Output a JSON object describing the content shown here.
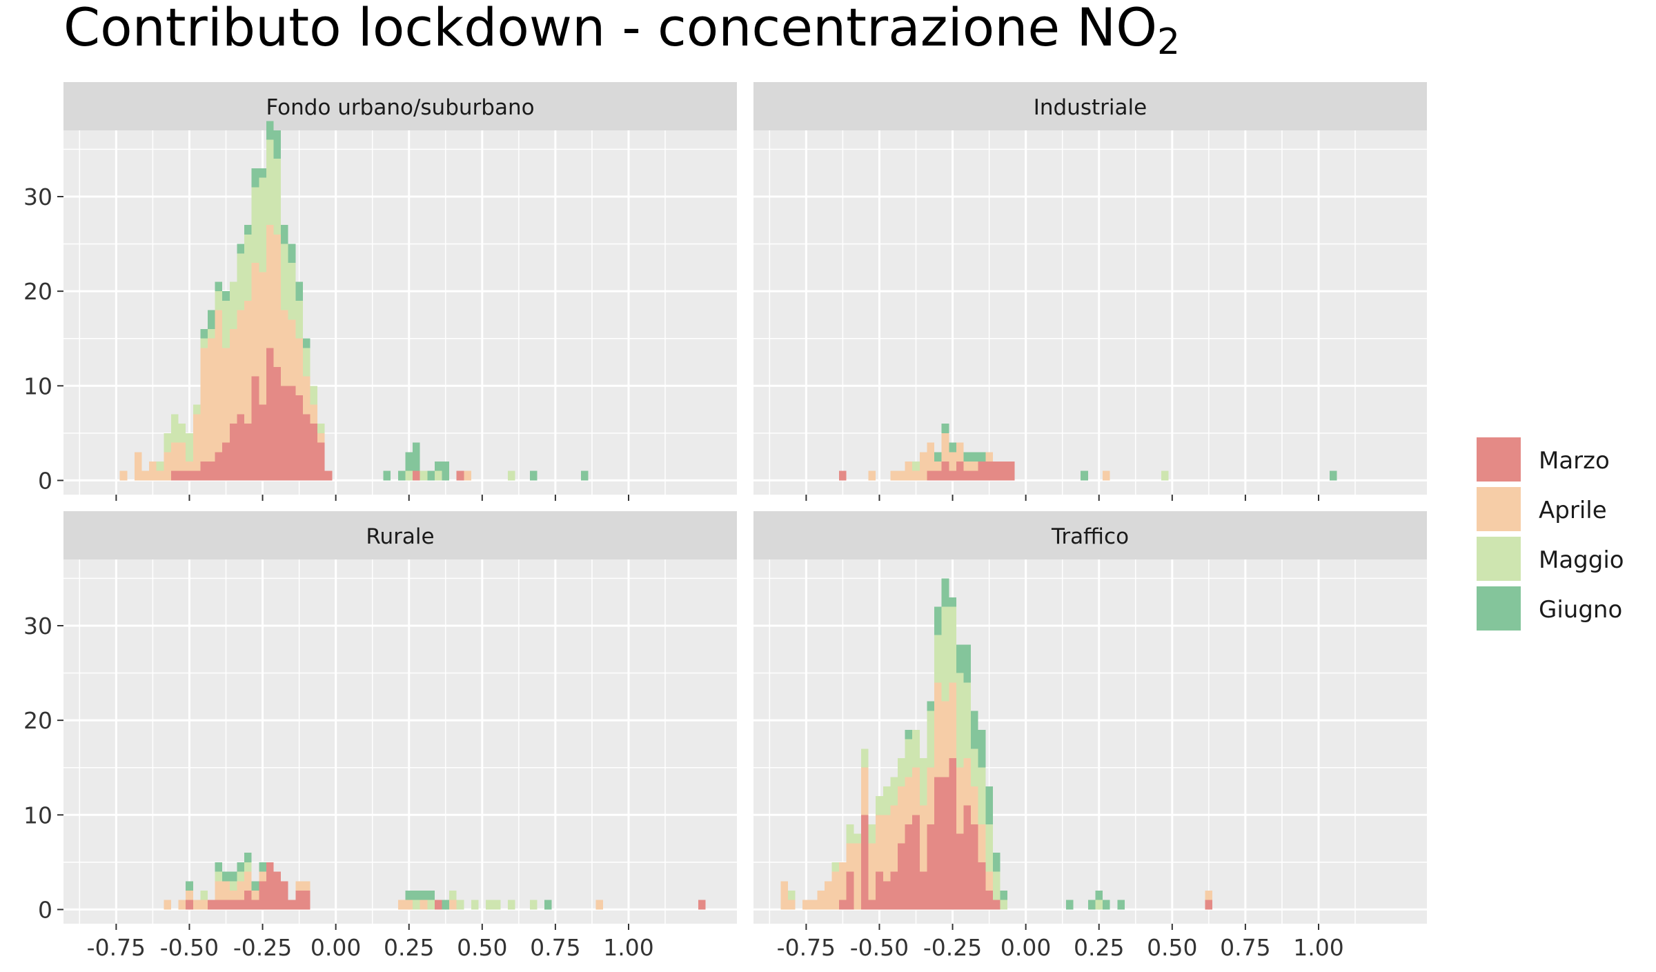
{
  "title": {
    "text": "Contributo lockdown - concentrazione NO",
    "subscript": "2"
  },
  "colors": {
    "Marzo": "#e48a86",
    "Aprile": "#f6cda7",
    "Maggio": "#cee5b0",
    "Giugno": "#84c59b",
    "panel_bg": "#ebebeb",
    "strip_bg": "#d9d9d9",
    "grid": "#ffffff"
  },
  "legend": {
    "position": "right",
    "items": [
      {
        "label": "Marzo",
        "color": "#e48a86"
      },
      {
        "label": "Aprile",
        "color": "#f6cda7"
      },
      {
        "label": "Maggio",
        "color": "#cee5b0"
      },
      {
        "label": "Giugno",
        "color": "#84c59b"
      }
    ]
  },
  "chart_data": {
    "type": "bar",
    "subtype": "faceted stacked histogram",
    "facet_layout": "2x2",
    "series": [
      "Marzo",
      "Aprile",
      "Maggio",
      "Giugno"
    ],
    "xlim": [
      -0.93,
      1.37
    ],
    "ylim": [
      -1.5,
      37
    ],
    "x_tick_labels": [
      "-0.75",
      "-0.50",
      "-0.25",
      "0.00",
      "0.25",
      "0.50",
      "0.75",
      "1.00"
    ],
    "x_ticks": [
      -0.75,
      -0.5,
      -0.25,
      0.0,
      0.25,
      0.5,
      0.75,
      1.0
    ],
    "y_tick_labels": [
      "0",
      "10",
      "20",
      "30"
    ],
    "y_ticks": [
      0,
      10,
      20,
      30
    ],
    "grid": true,
    "bin_width": 0.025,
    "bars_format": "[bin_center, Marzo, Aprile, Maggio, Giugno]",
    "panels": [
      {
        "label": "Fondo urbano/suburbano",
        "bars": [
          [
            -0.725,
            0,
            1,
            0,
            0
          ],
          [
            -0.675,
            0,
            3,
            0,
            0
          ],
          [
            -0.65,
            0,
            1,
            0,
            0
          ],
          [
            -0.625,
            0,
            2,
            0,
            0
          ],
          [
            -0.6,
            0,
            1,
            1,
            0
          ],
          [
            -0.575,
            0,
            3,
            2,
            0
          ],
          [
            -0.55,
            1,
            3,
            3,
            0
          ],
          [
            -0.525,
            1,
            3,
            2,
            0
          ],
          [
            -0.5,
            1,
            1,
            3,
            0
          ],
          [
            -0.475,
            1,
            6,
            1,
            0
          ],
          [
            -0.45,
            2,
            12,
            1,
            1
          ],
          [
            -0.425,
            2,
            13,
            1,
            2
          ],
          [
            -0.4,
            3,
            15,
            2,
            1
          ],
          [
            -0.375,
            4,
            10,
            5,
            1
          ],
          [
            -0.35,
            6,
            10,
            5,
            0
          ],
          [
            -0.325,
            7,
            11,
            6,
            1
          ],
          [
            -0.3,
            6,
            13,
            7,
            1
          ],
          [
            -0.275,
            11,
            12,
            8,
            2
          ],
          [
            -0.25,
            8,
            14,
            10,
            1
          ],
          [
            -0.225,
            14,
            13,
            9,
            2
          ],
          [
            -0.2,
            12,
            14,
            8,
            3
          ],
          [
            -0.175,
            10,
            8,
            7,
            2
          ],
          [
            -0.15,
            10,
            7,
            6,
            2
          ],
          [
            -0.125,
            9,
            6,
            4,
            2
          ],
          [
            -0.1,
            7,
            4,
            3,
            1
          ],
          [
            -0.075,
            6,
            2,
            2,
            0
          ],
          [
            -0.05,
            4,
            1,
            1,
            0
          ],
          [
            -0.025,
            1,
            0,
            0,
            0
          ],
          [
            0.175,
            0,
            0,
            0,
            1
          ],
          [
            0.225,
            0,
            0,
            0,
            1
          ],
          [
            0.25,
            0,
            0,
            1,
            2
          ],
          [
            0.275,
            1,
            0,
            0,
            3
          ],
          [
            0.3,
            0,
            0,
            1,
            0
          ],
          [
            0.325,
            0,
            0,
            0,
            1
          ],
          [
            0.35,
            0,
            0,
            1,
            1
          ],
          [
            0.375,
            0,
            0,
            0,
            2
          ],
          [
            0.425,
            1,
            0,
            0,
            0
          ],
          [
            0.45,
            0,
            1,
            0,
            0
          ],
          [
            0.6,
            0,
            0,
            1,
            0
          ],
          [
            0.675,
            0,
            0,
            0,
            1
          ],
          [
            0.85,
            0,
            0,
            0,
            1
          ]
        ]
      },
      {
        "label": "Industriale",
        "bars": [
          [
            -0.625,
            1,
            0,
            0,
            0
          ],
          [
            -0.525,
            0,
            1,
            0,
            0
          ],
          [
            -0.45,
            0,
            1,
            0,
            0
          ],
          [
            -0.425,
            0,
            1,
            0,
            0
          ],
          [
            -0.4,
            0,
            2,
            0,
            0
          ],
          [
            -0.375,
            0,
            1,
            1,
            0
          ],
          [
            -0.35,
            0,
            3,
            0,
            0
          ],
          [
            -0.325,
            1,
            3,
            0,
            0
          ],
          [
            -0.3,
            1,
            1,
            0,
            1
          ],
          [
            -0.275,
            2,
            3,
            0,
            1
          ],
          [
            -0.25,
            1,
            2,
            0,
            1
          ],
          [
            -0.225,
            2,
            2,
            0,
            0
          ],
          [
            -0.2,
            1,
            1,
            0,
            1
          ],
          [
            -0.175,
            1,
            1,
            0,
            1
          ],
          [
            -0.15,
            2,
            0,
            0,
            1
          ],
          [
            -0.125,
            2,
            1,
            0,
            0
          ],
          [
            -0.1,
            2,
            0,
            0,
            0
          ],
          [
            -0.075,
            2,
            0,
            0,
            0
          ],
          [
            -0.05,
            2,
            0,
            0,
            0
          ],
          [
            0.2,
            0,
            0,
            0,
            1
          ],
          [
            0.275,
            0,
            1,
            0,
            0
          ],
          [
            0.475,
            0,
            0,
            1,
            0
          ],
          [
            1.05,
            0,
            0,
            0,
            1
          ]
        ]
      },
      {
        "label": "Rurale",
        "bars": [
          [
            -0.575,
            0,
            1,
            0,
            0
          ],
          [
            -0.525,
            0,
            1,
            0,
            0
          ],
          [
            -0.5,
            1,
            1,
            0,
            1
          ],
          [
            -0.475,
            0,
            1,
            0,
            0
          ],
          [
            -0.45,
            0,
            1,
            1,
            0
          ],
          [
            -0.425,
            1,
            0,
            0,
            0
          ],
          [
            -0.4,
            1,
            2,
            1,
            1
          ],
          [
            -0.375,
            1,
            2,
            0,
            1
          ],
          [
            -0.35,
            1,
            1,
            1,
            1
          ],
          [
            -0.325,
            1,
            2,
            1,
            1
          ],
          [
            -0.3,
            2,
            2,
            1,
            1
          ],
          [
            -0.275,
            1,
            1,
            0,
            1
          ],
          [
            -0.25,
            3,
            1,
            0,
            1
          ],
          [
            -0.225,
            5,
            0,
            0,
            0
          ],
          [
            -0.2,
            4,
            0,
            0,
            0
          ],
          [
            -0.175,
            3,
            0,
            0,
            0
          ],
          [
            -0.15,
            1,
            0,
            0,
            0
          ],
          [
            -0.125,
            2,
            1,
            0,
            0
          ],
          [
            -0.1,
            2,
            1,
            0,
            0
          ],
          [
            0.225,
            0,
            1,
            0,
            0
          ],
          [
            0.25,
            0,
            1,
            0,
            1
          ],
          [
            0.275,
            0,
            0,
            1,
            1
          ],
          [
            0.3,
            0,
            1,
            0,
            1
          ],
          [
            0.325,
            0,
            0,
            1,
            1
          ],
          [
            0.35,
            1,
            0,
            0,
            0
          ],
          [
            0.375,
            0,
            0,
            0,
            1
          ],
          [
            0.4,
            0,
            1,
            1,
            0
          ],
          [
            0.425,
            0,
            0,
            1,
            0
          ],
          [
            0.475,
            0,
            0,
            1,
            0
          ],
          [
            0.525,
            0,
            0,
            1,
            0
          ],
          [
            0.55,
            0,
            0,
            1,
            0
          ],
          [
            0.6,
            0,
            0,
            1,
            0
          ],
          [
            0.675,
            0,
            0,
            1,
            0
          ],
          [
            0.725,
            0,
            0,
            0,
            1
          ],
          [
            0.9,
            0,
            1,
            0,
            0
          ],
          [
            1.25,
            1,
            0,
            0,
            0
          ]
        ]
      },
      {
        "label": "Traffico",
        "bars": [
          [
            -0.825,
            0,
            3,
            0,
            0
          ],
          [
            -0.8,
            0,
            1,
            1,
            0
          ],
          [
            -0.75,
            0,
            1,
            0,
            0
          ],
          [
            -0.725,
            0,
            1,
            0,
            0
          ],
          [
            -0.7,
            0,
            2,
            0,
            0
          ],
          [
            -0.675,
            0,
            3,
            0,
            0
          ],
          [
            -0.65,
            0,
            4,
            1,
            0
          ],
          [
            -0.625,
            1,
            4,
            0,
            0
          ],
          [
            -0.6,
            4,
            3,
            2,
            0
          ],
          [
            -0.575,
            0,
            7,
            1,
            0
          ],
          [
            -0.55,
            10,
            5,
            2,
            0
          ],
          [
            -0.525,
            1,
            6,
            2,
            0
          ],
          [
            -0.5,
            4,
            6,
            2,
            0
          ],
          [
            -0.475,
            3,
            7,
            3,
            0
          ],
          [
            -0.45,
            4,
            7,
            3,
            0
          ],
          [
            -0.425,
            7,
            6,
            3,
            0
          ],
          [
            -0.4,
            9,
            5,
            4,
            1
          ],
          [
            -0.375,
            10,
            5,
            4,
            0
          ],
          [
            -0.35,
            4,
            7,
            5,
            0
          ],
          [
            -0.325,
            9,
            6,
            6,
            1
          ],
          [
            -0.3,
            14,
            10,
            5,
            3
          ],
          [
            -0.275,
            14,
            8,
            10,
            3
          ],
          [
            -0.25,
            16,
            8,
            8,
            1
          ],
          [
            -0.225,
            8,
            7,
            10,
            3
          ],
          [
            -0.2,
            11,
            5,
            8,
            4
          ],
          [
            -0.175,
            9,
            4,
            4,
            4
          ],
          [
            -0.15,
            5,
            4,
            6,
            4
          ],
          [
            -0.125,
            2,
            2,
            5,
            4
          ],
          [
            -0.1,
            1,
            0,
            3,
            2
          ],
          [
            -0.075,
            0,
            0,
            1,
            1
          ],
          [
            0.15,
            0,
            0,
            0,
            1
          ],
          [
            0.225,
            0,
            0,
            0,
            1
          ],
          [
            0.25,
            0,
            0,
            1,
            1
          ],
          [
            0.275,
            0,
            0,
            0,
            1
          ],
          [
            0.325,
            0,
            0,
            0,
            1
          ],
          [
            0.625,
            1,
            1,
            0,
            0
          ]
        ]
      }
    ]
  }
}
